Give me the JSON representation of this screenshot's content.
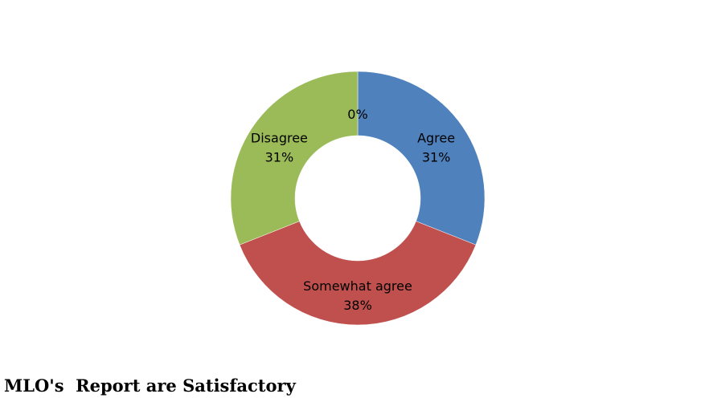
{
  "chart_data": {
    "type": "donut",
    "title": "MLO's  Report are Satisfactory",
    "categories": [
      "Agree",
      "Somewhat agree",
      "Disagree",
      null
    ],
    "values": [
      31,
      38,
      31,
      0
    ],
    "value_labels": [
      "31%",
      "38%",
      "31%",
      "0%"
    ],
    "colors": [
      "#4f81bd",
      "#c0504d",
      "#9bbb59",
      "#8064a2"
    ]
  }
}
